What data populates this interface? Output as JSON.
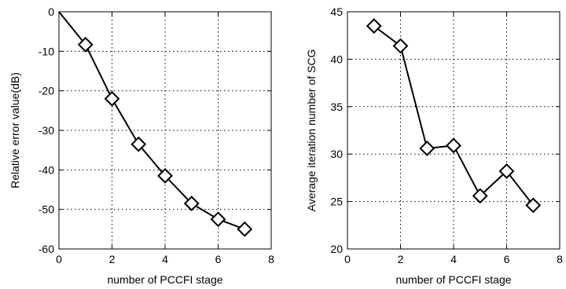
{
  "chart_data": [
    {
      "type": "line",
      "xlabel": "number of PCCFI stage",
      "ylabel": "Relative error value(dB)",
      "xlim": [
        0,
        8
      ],
      "ylim": [
        -60,
        0
      ],
      "xticks": [
        0,
        2,
        4,
        6,
        8
      ],
      "yticks": [
        -60,
        -50,
        -40,
        -30,
        -20,
        -10,
        0
      ],
      "grid": true,
      "marker": "diamond",
      "x": [
        0,
        1,
        2,
        3,
        4,
        5,
        6,
        7
      ],
      "y": [
        0,
        -8.3,
        -22,
        -33.5,
        -41.5,
        -48.5,
        -52.5,
        -55
      ],
      "marker_start": 1
    },
    {
      "type": "line",
      "xlabel": "number of PCCFI stage",
      "ylabel": "Average iteration number of SCG",
      "xlim": [
        0,
        8
      ],
      "ylim": [
        20,
        45
      ],
      "xticks": [
        0,
        2,
        4,
        6,
        8
      ],
      "yticks": [
        20,
        25,
        30,
        35,
        40,
        45
      ],
      "grid": true,
      "marker": "diamond",
      "x": [
        1,
        2,
        3,
        4,
        5,
        6,
        7
      ],
      "y": [
        43.5,
        41.4,
        30.6,
        30.9,
        25.6,
        28.2,
        24.6
      ],
      "marker_start": 0
    }
  ]
}
